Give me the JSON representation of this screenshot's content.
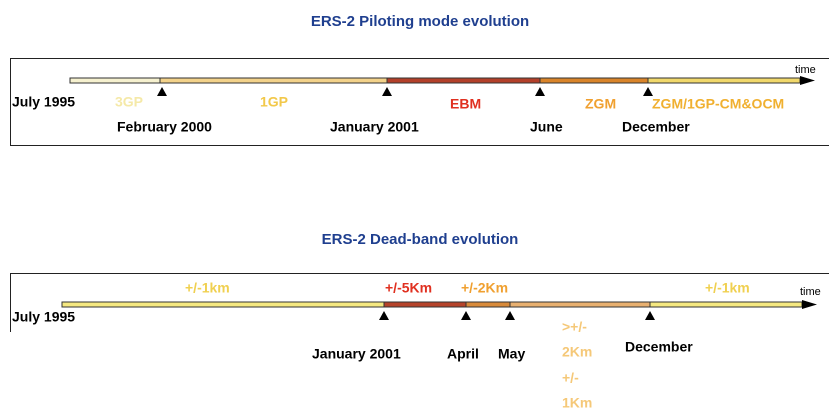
{
  "piloting": {
    "title": "ERS-2 Piloting mode evolution",
    "start": "July 1995",
    "axis_label": "time",
    "modes": [
      "3GP",
      "1GP",
      "EBM",
      "ZGM",
      "ZGM/1GP-CM&OCM"
    ],
    "dates": [
      "February 2000",
      "January 2001",
      "June",
      "December"
    ]
  },
  "deadband": {
    "title": "ERS-2 Dead-band evolution",
    "start": "July 1995",
    "axis_label": "time",
    "bands": [
      "+/-1km",
      "+/-5Km",
      "+/-2Km",
      "+/-1km"
    ],
    "dates": [
      "January 2001",
      "April",
      "May",
      "December"
    ],
    "note_lines": [
      ">+/-",
      "2Km",
      "+/-",
      "1Km"
    ]
  }
}
